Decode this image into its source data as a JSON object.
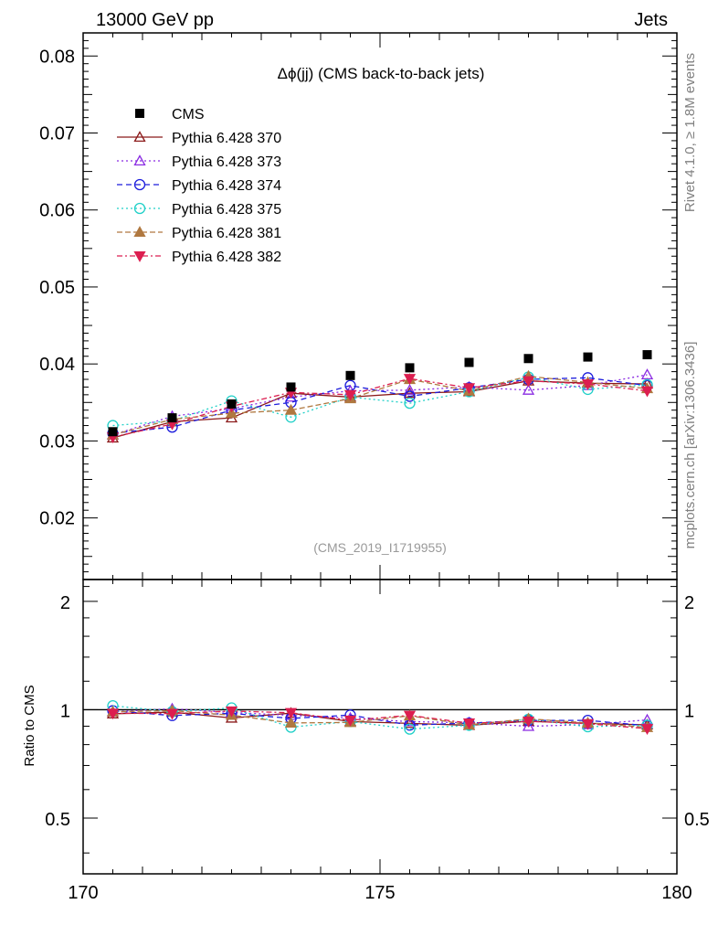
{
  "header": {
    "left": "13000 GeV pp",
    "right": "Jets",
    "side_top": "Rivet 4.1.0, ≥ 1.8M events",
    "side_bottom": "mcplots.cern.ch [arXiv:1306.3436]"
  },
  "chart_data": {
    "type": "line",
    "title": "Δϕ(jj) (CMS back-to-back jets)",
    "analysis_label": "(CMS_2019_I1719955)",
    "xlabel": "",
    "ylabel": "",
    "ratio_ylabel": "Ratio to CMS",
    "xlim": [
      170,
      180
    ],
    "ylim": [
      0.012,
      0.083
    ],
    "ratio_ylim": [
      0.35,
      2.3
    ],
    "x_ticks": [
      "170",
      "175",
      "180"
    ],
    "y_ticks": [
      "0.02",
      "0.03",
      "0.04",
      "0.05",
      "0.06",
      "0.07",
      "0.08"
    ],
    "ratio_y_ticks": [
      "0.5",
      "1",
      "2"
    ],
    "x": [
      170.5,
      171.5,
      172.5,
      173.5,
      174.5,
      175.5,
      176.5,
      177.5,
      178.5,
      179.5
    ],
    "data": {
      "name": "CMS",
      "values": [
        0.0312,
        0.033,
        0.0348,
        0.037,
        0.0385,
        0.0395,
        0.0402,
        0.0407,
        0.0409,
        0.0412
      ],
      "color": "#000000"
    },
    "series": [
      {
        "name": "Pythia 6.428 370",
        "color": "#8b1a1a",
        "dash": "",
        "marker": "tri-up-open",
        "values": [
          0.0304,
          0.0325,
          0.033,
          0.0362,
          0.0357,
          0.0362,
          0.0364,
          0.0378,
          0.0375,
          0.0374
        ]
      },
      {
        "name": "Pythia 6.428 373",
        "color": "#8a2be2",
        "dash": "2,3",
        "marker": "tri-up-open",
        "values": [
          0.0308,
          0.0332,
          0.0342,
          0.0357,
          0.0365,
          0.0366,
          0.037,
          0.0366,
          0.0372,
          0.0386
        ]
      },
      {
        "name": "Pythia 6.428 374",
        "color": "#1c1cdc",
        "dash": "6,4",
        "marker": "circle-open",
        "values": [
          0.031,
          0.0318,
          0.034,
          0.035,
          0.0372,
          0.0358,
          0.0369,
          0.038,
          0.0382,
          0.0372
        ]
      },
      {
        "name": "Pythia 6.428 375",
        "color": "#20d0c8",
        "dash": "2,3",
        "marker": "circle-open",
        "values": [
          0.032,
          0.0326,
          0.0352,
          0.0331,
          0.0357,
          0.0349,
          0.0364,
          0.0383,
          0.0367,
          0.0373
        ]
      },
      {
        "name": "Pythia 6.428 381",
        "color": "#b07840",
        "dash": "6,3",
        "marker": "tri-up-filled",
        "values": [
          0.0308,
          0.0328,
          0.0336,
          0.034,
          0.0355,
          0.038,
          0.0365,
          0.0384,
          0.0376,
          0.0368
        ]
      },
      {
        "name": "Pythia 6.428 382",
        "color": "#dc1e50",
        "dash": "6,3,2,3",
        "marker": "tri-down-filled",
        "values": [
          0.0305,
          0.0322,
          0.0345,
          0.0363,
          0.036,
          0.0381,
          0.0369,
          0.0378,
          0.0374,
          0.0365
        ]
      }
    ]
  }
}
